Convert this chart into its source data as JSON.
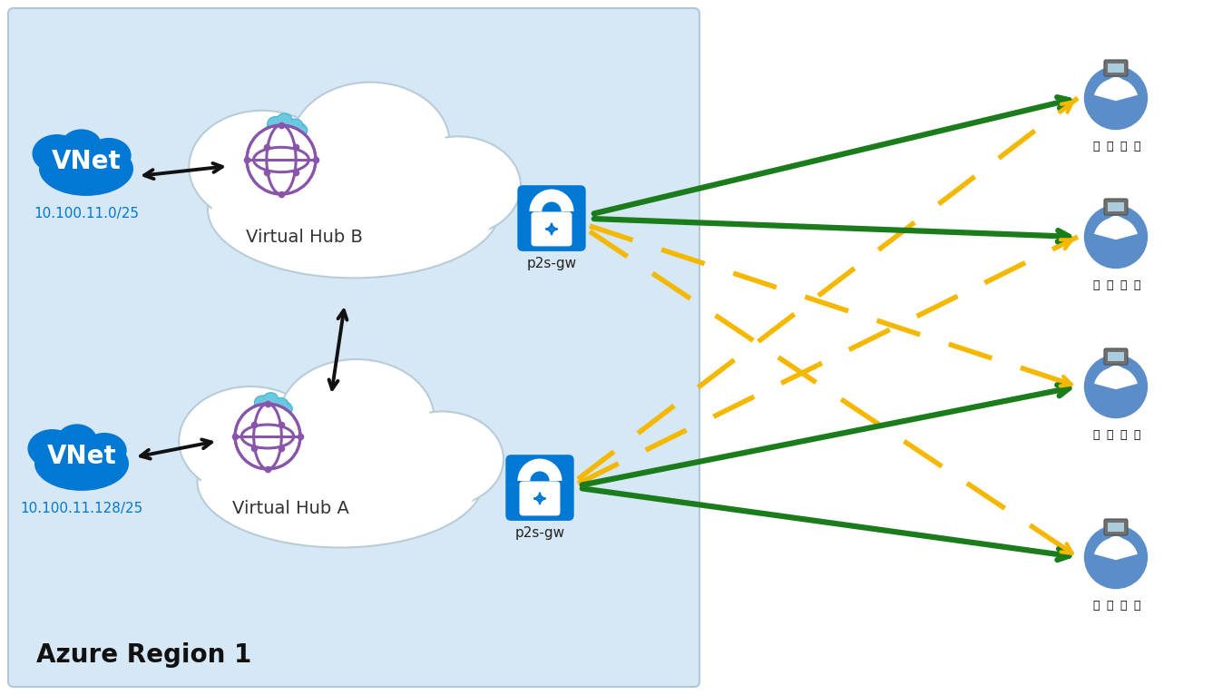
{
  "bg_azure": "#d6e8f5",
  "bg_white": "#ffffff",
  "vnet_blue": "#0078d4",
  "lock_blue": "#0078d4",
  "user_blue": "#5b8dc9",
  "hub_purple": "#8855aa",
  "hub_cloud_blue": "#6cc8e0",
  "arrow_green": "#1a7c1a",
  "arrow_yellow": "#f5b800",
  "arrow_black": "#111111",
  "azure_region_label": "Azure Region 1",
  "hub_b_label": "Virtual Hub B",
  "hub_a_label": "Virtual Hub A",
  "p2s_label": "p2s-gw",
  "vnet_label": "VNet",
  "vnet_b_ip": "10.100.11.0/25",
  "vnet_a_ip": "10.100.11.128/25",
  "fig_w": 13.58,
  "fig_h": 7.66,
  "dpi": 100
}
